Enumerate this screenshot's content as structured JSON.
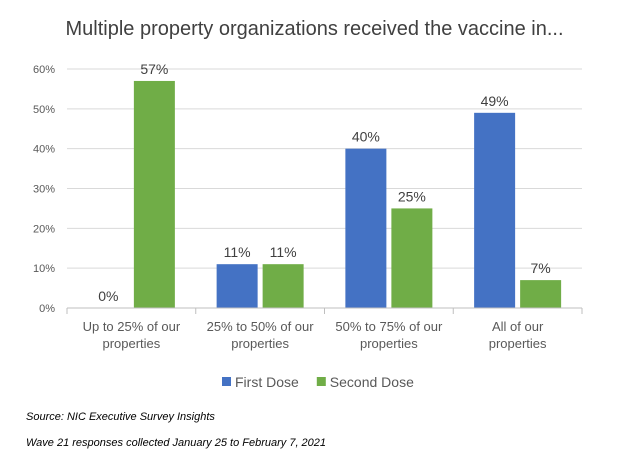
{
  "chart_data": {
    "type": "bar",
    "title": "Multiple property organizations received the vaccine in...",
    "categories": [
      [
        "Up to 25% of our",
        "properties"
      ],
      [
        "25% to 50% of our",
        "properties"
      ],
      [
        "50% to 75% of our",
        "properties"
      ],
      [
        "All of our",
        "properties"
      ]
    ],
    "series": [
      {
        "name": "First Dose",
        "color": "#4472C4",
        "values": [
          0,
          11,
          40,
          49
        ],
        "labels": [
          "0%",
          "11%",
          "40%",
          "49%"
        ]
      },
      {
        "name": "Second Dose",
        "color": "#70AD47",
        "values": [
          57,
          11,
          25,
          7
        ],
        "labels": [
          "57%",
          "11%",
          "25%",
          "7%"
        ]
      }
    ],
    "y_ticks": [
      "0%",
      "10%",
      "20%",
      "30%",
      "40%",
      "50%",
      "60%"
    ],
    "ylim": [
      0,
      60
    ],
    "grid": true,
    "legend_position": "bottom"
  },
  "notes": {
    "source": "Source: NIC Executive Survey Insights",
    "wave": "Wave 21 responses collected  January 25 to February 7, 2021"
  }
}
